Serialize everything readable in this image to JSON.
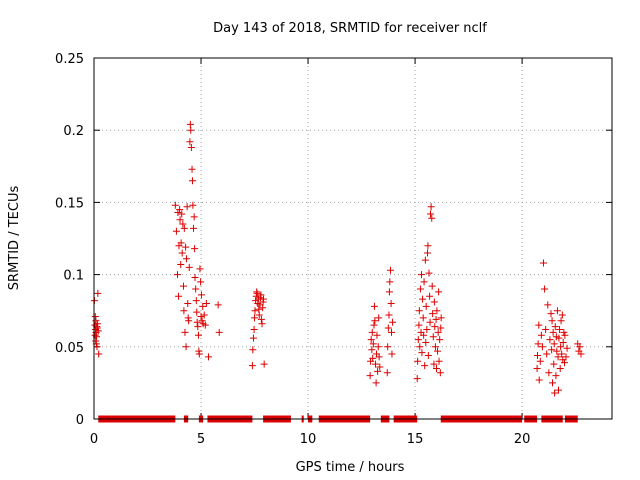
{
  "chart_data": {
    "type": "scatter",
    "title": "Day 143 of 2018, SRMTID for receiver nclf",
    "xlabel": "GPS time / hours",
    "ylabel": "SRMTID / TECUs",
    "xlim": [
      0,
      24.2
    ],
    "ylim": [
      0,
      0.25
    ],
    "grid": true,
    "marker": "+",
    "color": "#dd0000",
    "xticks": [
      {
        "value": 0,
        "label": "0"
      },
      {
        "value": 5,
        "label": "5"
      },
      {
        "value": 10,
        "label": "10"
      },
      {
        "value": 15,
        "label": "15"
      },
      {
        "value": 20,
        "label": "20"
      }
    ],
    "yticks": [
      {
        "value": 0,
        "label": "0"
      },
      {
        "value": 0.05,
        "label": "0.05"
      },
      {
        "value": 0.1,
        "label": "0.1"
      },
      {
        "value": 0.15,
        "label": "0.15"
      },
      {
        "value": 0.2,
        "label": "0.2"
      },
      {
        "value": 0.25,
        "label": "0.25"
      }
    ],
    "zero_segments": [
      [
        0.2,
        3.8
      ],
      [
        4.2,
        4.4
      ],
      [
        4.9,
        5.1
      ],
      [
        5.3,
        7.4
      ],
      [
        7.9,
        9.2
      ],
      [
        9.7,
        9.8
      ],
      [
        10.0,
        10.2
      ],
      [
        10.5,
        12.9
      ],
      [
        13.4,
        13.8
      ],
      [
        14.0,
        15.1
      ],
      [
        16.2,
        20.0
      ],
      [
        20.1,
        20.7
      ],
      [
        20.9,
        21.9
      ],
      [
        22.0,
        22.6
      ]
    ],
    "series": [
      {
        "name": "SRMTID",
        "x": [
          0.02,
          0.04,
          0.05,
          0.06,
          0.07,
          0.08,
          0.09,
          0.1,
          0.11,
          0.12,
          0.13,
          0.14,
          0.15,
          0.16,
          0.18,
          0.2,
          0.22,
          3.8,
          3.85,
          3.9,
          3.92,
          3.95,
          3.97,
          4.0,
          4.02,
          4.05,
          4.07,
          4.1,
          4.12,
          4.15,
          4.18,
          4.2,
          4.22,
          4.25,
          4.28,
          4.3,
          4.32,
          4.35,
          4.38,
          4.4,
          4.42,
          4.45,
          4.48,
          4.5,
          4.52,
          4.55,
          4.58,
          4.6,
          4.62,
          4.65,
          4.68,
          4.7,
          4.72,
          4.75,
          4.78,
          4.8,
          4.82,
          4.85,
          4.88,
          4.9,
          4.92,
          4.95,
          4.98,
          5.0,
          5.02,
          5.05,
          5.08,
          5.1,
          5.15,
          5.2,
          5.25,
          5.35,
          5.8,
          5.85,
          7.4,
          7.42,
          7.45,
          7.48,
          7.5,
          7.52,
          7.55,
          7.58,
          7.6,
          7.62,
          7.65,
          7.68,
          7.7,
          7.72,
          7.75,
          7.78,
          7.8,
          7.82,
          7.85,
          7.88,
          7.9,
          7.92,
          7.95,
          12.9,
          12.92,
          12.95,
          12.98,
          13.0,
          13.02,
          13.05,
          13.08,
          13.1,
          13.12,
          13.15,
          13.18,
          13.2,
          13.22,
          13.25,
          13.28,
          13.3,
          13.32,
          13.35,
          13.7,
          13.72,
          13.75,
          13.78,
          13.8,
          13.82,
          13.85,
          13.88,
          13.9,
          13.92,
          13.95,
          15.1,
          15.12,
          15.15,
          15.18,
          15.2,
          15.22,
          15.25,
          15.28,
          15.3,
          15.32,
          15.35,
          15.38,
          15.4,
          15.42,
          15.45,
          15.48,
          15.5,
          15.52,
          15.55,
          15.58,
          15.6,
          15.62,
          15.65,
          15.68,
          15.7,
          15.72,
          15.75,
          15.78,
          15.8,
          15.82,
          15.85,
          15.88,
          15.9,
          15.92,
          15.95,
          15.98,
          16.0,
          16.02,
          16.05,
          16.08,
          16.1,
          16.12,
          16.15,
          16.18,
          16.2,
          16.22,
          20.7,
          20.72,
          20.75,
          20.78,
          20.8,
          20.85,
          20.9,
          20.95,
          21.0,
          21.05,
          21.1,
          21.15,
          21.2,
          21.25,
          21.3,
          21.35,
          21.38,
          21.4,
          21.42,
          21.45,
          21.48,
          21.5,
          21.52,
          21.55,
          21.58,
          21.6,
          21.62,
          21.65,
          21.68,
          21.7,
          21.72,
          21.75,
          21.78,
          21.8,
          21.82,
          21.85,
          21.88,
          21.9,
          21.92,
          21.95,
          21.98,
          22.0,
          22.05,
          22.1,
          22.6,
          22.65,
          22.7,
          22.75
        ],
        "y": [
          0.082,
          0.065,
          0.058,
          0.071,
          0.062,
          0.054,
          0.068,
          0.06,
          0.052,
          0.057,
          0.064,
          0.05,
          0.063,
          0.066,
          0.087,
          0.061,
          0.045,
          0.148,
          0.13,
          0.1,
          0.143,
          0.085,
          0.12,
          0.145,
          0.138,
          0.107,
          0.122,
          0.142,
          0.115,
          0.135,
          0.092,
          0.075,
          0.132,
          0.06,
          0.119,
          0.05,
          0.111,
          0.147,
          0.08,
          0.07,
          0.068,
          0.105,
          0.192,
          0.204,
          0.2,
          0.188,
          0.173,
          0.165,
          0.148,
          0.132,
          0.14,
          0.118,
          0.098,
          0.09,
          0.082,
          0.074,
          0.067,
          0.064,
          0.058,
          0.047,
          0.045,
          0.104,
          0.095,
          0.071,
          0.086,
          0.068,
          0.078,
          0.066,
          0.072,
          0.065,
          0.08,
          0.043,
          0.079,
          0.06,
          0.037,
          0.048,
          0.056,
          0.062,
          0.07,
          0.075,
          0.082,
          0.085,
          0.088,
          0.087,
          0.08,
          0.083,
          0.076,
          0.072,
          0.079,
          0.084,
          0.086,
          0.069,
          0.066,
          0.077,
          0.081,
          0.083,
          0.038,
          0.03,
          0.04,
          0.055,
          0.048,
          0.06,
          0.042,
          0.052,
          0.065,
          0.078,
          0.068,
          0.038,
          0.025,
          0.045,
          0.058,
          0.033,
          0.05,
          0.07,
          0.043,
          0.036,
          0.032,
          0.05,
          0.063,
          0.072,
          0.088,
          0.095,
          0.103,
          0.08,
          0.06,
          0.045,
          0.067,
          0.028,
          0.04,
          0.055,
          0.065,
          0.075,
          0.05,
          0.09,
          0.06,
          0.1,
          0.046,
          0.083,
          0.07,
          0.058,
          0.095,
          0.037,
          0.11,
          0.053,
          0.078,
          0.062,
          0.115,
          0.12,
          0.044,
          0.101,
          0.085,
          0.067,
          0.142,
          0.147,
          0.139,
          0.092,
          0.073,
          0.057,
          0.038,
          0.081,
          0.064,
          0.05,
          0.069,
          0.035,
          0.075,
          0.047,
          0.06,
          0.088,
          0.04,
          0.055,
          0.032,
          0.063,
          0.07,
          0.035,
          0.044,
          0.052,
          0.065,
          0.027,
          0.04,
          0.058,
          0.05,
          0.108,
          0.09,
          0.062,
          0.045,
          0.079,
          0.032,
          0.055,
          0.073,
          0.048,
          0.068,
          0.025,
          0.06,
          0.038,
          0.052,
          0.018,
          0.064,
          0.03,
          0.057,
          0.047,
          0.075,
          0.043,
          0.02,
          0.056,
          0.062,
          0.035,
          0.05,
          0.068,
          0.045,
          0.072,
          0.041,
          0.053,
          0.06,
          0.039,
          0.058,
          0.043,
          0.049,
          0.052,
          0.047,
          0.05,
          0.045
        ]
      }
    ]
  }
}
